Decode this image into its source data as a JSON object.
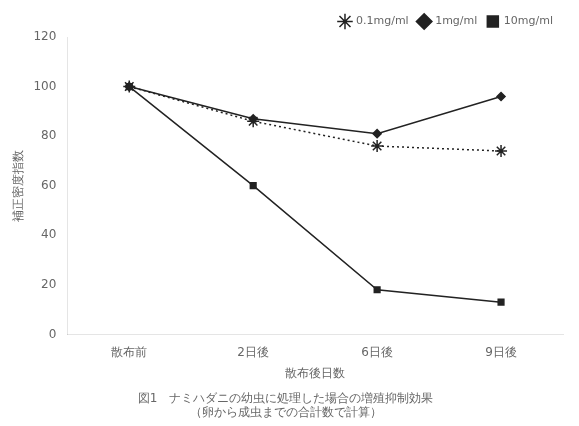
{
  "chart_data": {
    "type": "line",
    "title": "図1　ナミハダニの幼虫に処理した場合の増殖抑制効果",
    "subtitle": "（卵から成虫までの合計数で計算）",
    "x_label": "散布後日数",
    "y_label": "補正密度指数",
    "categories": [
      "散布前",
      "2日後",
      "6日後",
      "9日後"
    ],
    "series": [
      {
        "name": "0.1mg/ml",
        "color": "#222222",
        "marker": "star",
        "line_style": "dotted",
        "values": [
          100,
          86,
          76,
          74
        ]
      },
      {
        "name": "1mg/ml",
        "color": "#222222",
        "marker": "diamond",
        "line_style": "solid",
        "values": [
          100,
          87,
          81,
          96
        ]
      },
      {
        "name": "10mg/ml",
        "color": "#222222",
        "marker": "square",
        "line_style": "solid",
        "values": [
          100,
          60,
          18,
          13
        ]
      }
    ],
    "ylim": [
      0,
      120
    ],
    "yticks": [
      0,
      20,
      40,
      60,
      80,
      100,
      120
    ],
    "grid": false,
    "legend": "upper right"
  }
}
